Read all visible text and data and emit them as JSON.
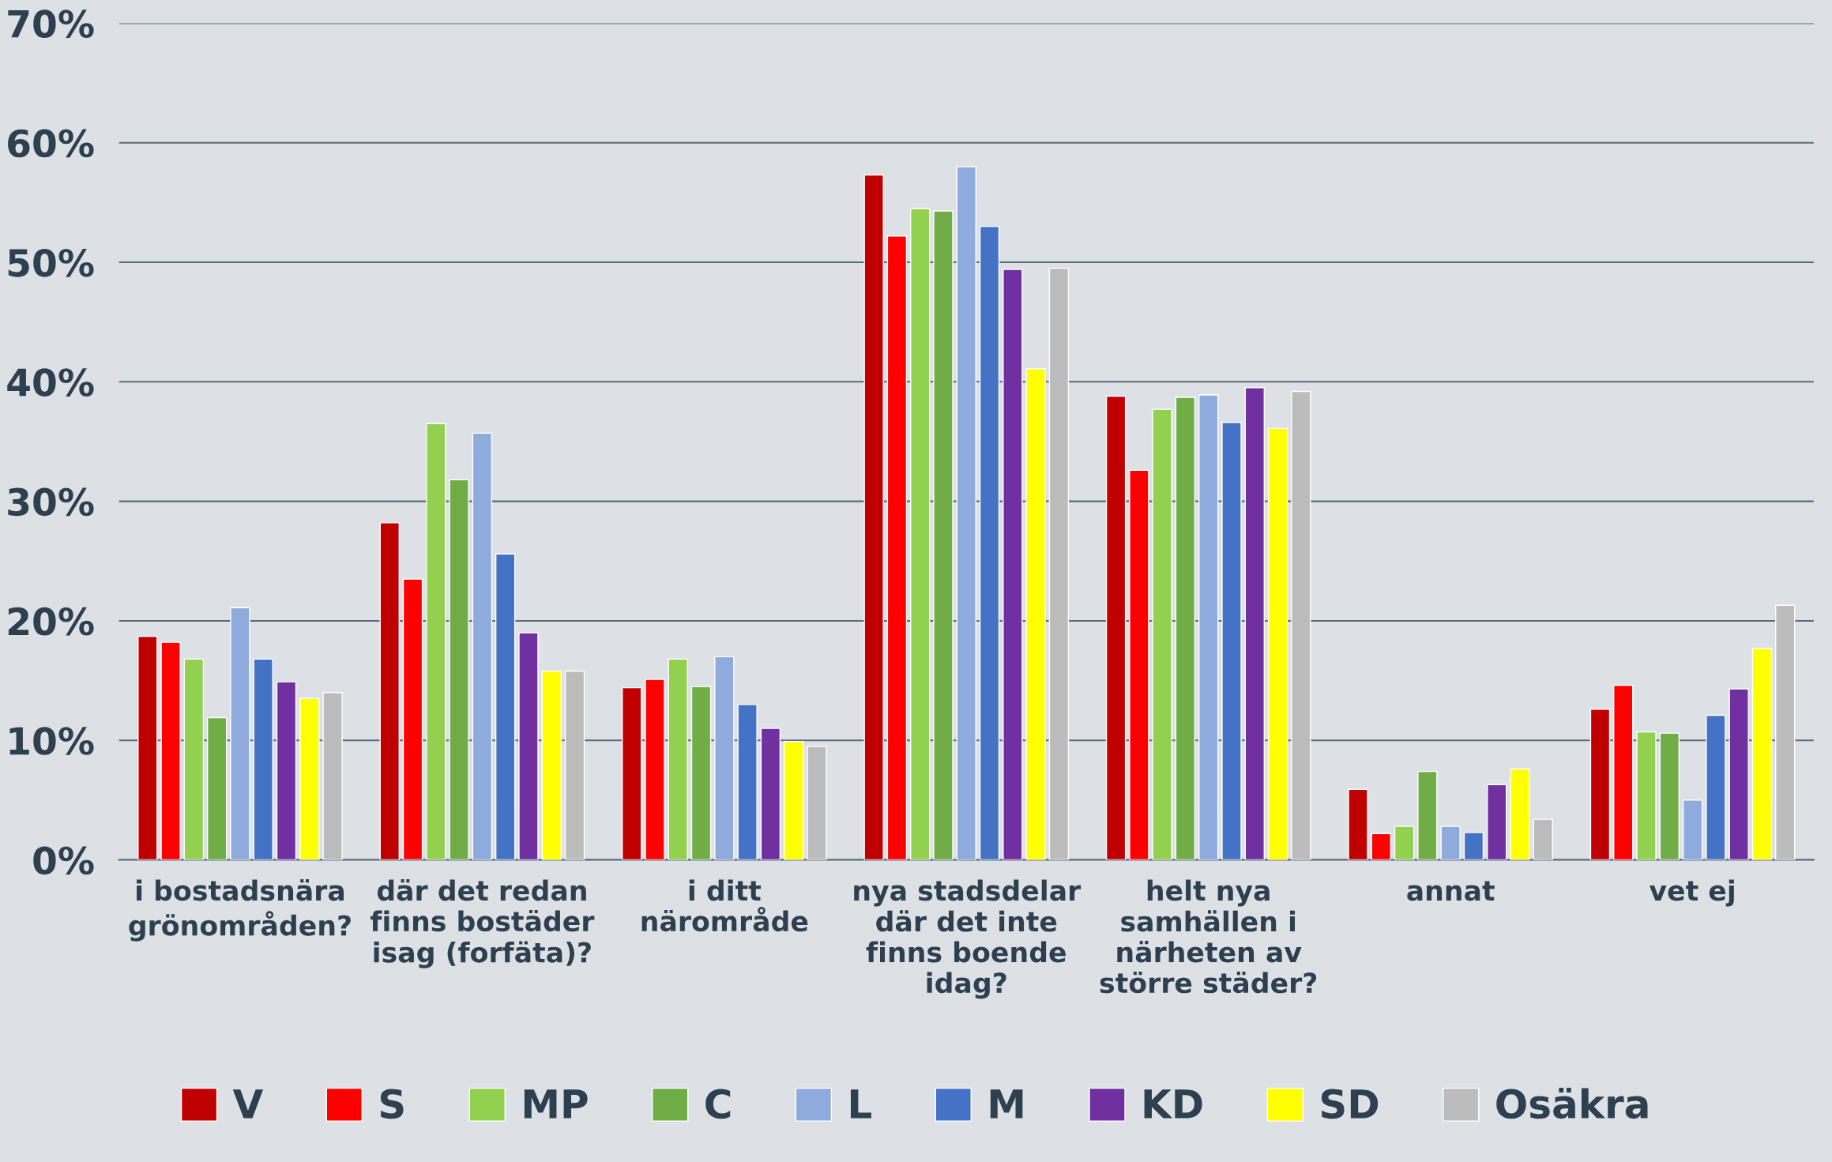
{
  "chart_data": {
    "type": "bar",
    "categories": [
      "i bostadsnära\ngrönområden?",
      "där det redan\nfinns bostäder\nisag (forfäta)?",
      "i ditt\nnärområde",
      "nya stadsdelar\ndär det inte\nfinns boende\nidag?",
      "helt nya\nsamhällen i\nnärheten av\nstörre städer?",
      "annat",
      "vet ej"
    ],
    "series": [
      {
        "name": "V",
        "color": "#c00000",
        "values": [
          18.7,
          28.2,
          14.4,
          57.3,
          38.8,
          5.9,
          12.6
        ]
      },
      {
        "name": "S",
        "color": "#ff0000",
        "values": [
          18.2,
          23.5,
          15.1,
          52.2,
          32.6,
          2.2,
          14.6
        ]
      },
      {
        "name": "MP",
        "color": "#92d050",
        "values": [
          16.8,
          36.5,
          16.8,
          54.5,
          37.7,
          2.8,
          10.7
        ]
      },
      {
        "name": "C",
        "color": "#70ad47",
        "values": [
          11.9,
          31.8,
          14.5,
          54.3,
          38.7,
          7.4,
          10.6
        ]
      },
      {
        "name": "L",
        "color": "#8faadc",
        "values": [
          21.1,
          35.7,
          17.0,
          58.0,
          38.9,
          2.8,
          5.0
        ]
      },
      {
        "name": "M",
        "color": "#4472c4",
        "values": [
          16.8,
          25.6,
          13.0,
          53.0,
          36.6,
          2.3,
          12.1
        ]
      },
      {
        "name": "KD",
        "color": "#7030a0",
        "values": [
          14.9,
          19.0,
          11.0,
          49.4,
          39.5,
          6.3,
          14.3
        ]
      },
      {
        "name": "SD",
        "color": "#ffff00",
        "values": [
          13.5,
          15.8,
          9.9,
          41.1,
          36.1,
          7.6,
          17.7
        ]
      },
      {
        "name": "Osäkra",
        "color": "#bcbcbc",
        "values": [
          14.0,
          15.8,
          9.5,
          49.5,
          39.2,
          3.4,
          21.3
        ]
      }
    ],
    "ylim": [
      0,
      70
    ],
    "yticks": [
      {
        "value": 0,
        "label": "0%"
      },
      {
        "value": 10,
        "label": "10%"
      },
      {
        "value": 20,
        "label": "20%"
      },
      {
        "value": 30,
        "label": "30%"
      },
      {
        "value": 40,
        "label": "40%"
      },
      {
        "value": 50,
        "label": "50%"
      },
      {
        "value": 60,
        "label": "60%"
      },
      {
        "value": 70,
        "label": "70%"
      }
    ],
    "grid": "y",
    "legend": "bottom"
  }
}
